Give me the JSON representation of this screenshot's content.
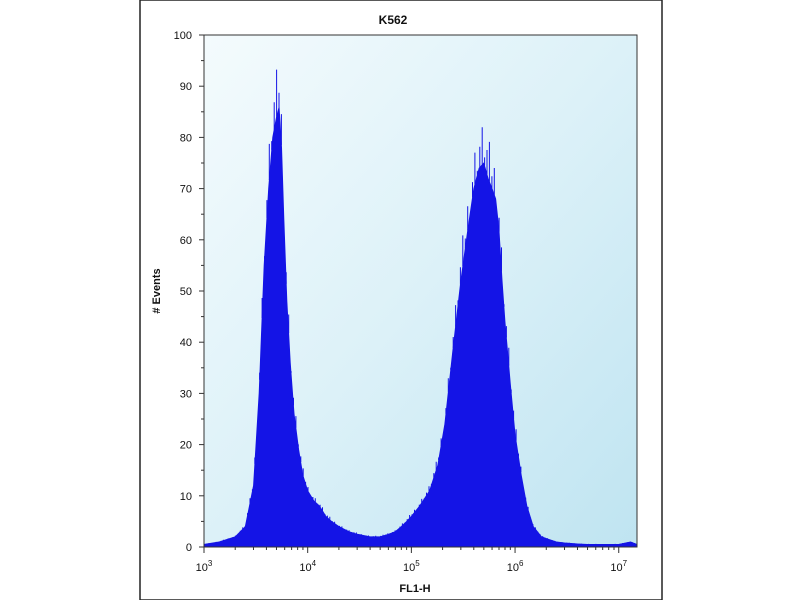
{
  "chart_data": {
    "type": "area",
    "title": "K562",
    "xlabel": "FL1-H",
    "ylabel": "# Events",
    "x_scale": "log",
    "x_range": [
      1000,
      15000000
    ],
    "xticks": [
      {
        "value": 1000,
        "base": "10",
        "exp": "3"
      },
      {
        "value": 10000,
        "base": "10",
        "exp": "4"
      },
      {
        "value": 100000,
        "base": "10",
        "exp": "5"
      },
      {
        "value": 1000000,
        "base": "10",
        "exp": "6"
      },
      {
        "value": 10000000,
        "base": "10",
        "exp": "7"
      }
    ],
    "ylim": [
      0,
      100
    ],
    "yticks": [
      "0",
      "10",
      "20",
      "30",
      "40",
      "50",
      "60",
      "70",
      "80",
      "90",
      "100"
    ],
    "series": [
      {
        "color": "#1414e6",
        "x": [
          1000,
          1400,
          2000,
          2500,
          3000,
          3400,
          3800,
          4200,
          4600,
          5000,
          5300,
          5600,
          5900,
          6300,
          6800,
          7400,
          8200,
          9000,
          10000,
          11500,
          13000,
          15000,
          17000,
          20000,
          25000,
          30000,
          40000,
          50000,
          60000,
          70000,
          80000,
          90000,
          100000,
          120000,
          150000,
          180000,
          210000,
          250000,
          300000,
          350000,
          400000,
          450000,
          500000,
          550000,
          600000,
          650000,
          700000,
          750000,
          800000,
          900000,
          1000000,
          1150000,
          1300000,
          1500000,
          1800000,
          2100000,
          2500000,
          3000000,
          4000000,
          5000000,
          7000000,
          10000000,
          13000000,
          15000000
        ],
        "y": [
          0.5,
          1,
          2,
          4,
          12,
          30,
          55,
          70,
          80,
          84,
          86,
          78,
          64,
          48,
          36,
          26,
          19,
          14,
          11,
          9,
          8,
          6,
          5,
          4,
          3,
          2.5,
          2,
          2,
          2.5,
          3,
          4,
          5,
          6,
          8,
          11,
          16,
          24,
          38,
          52,
          62,
          70,
          74,
          75,
          72,
          70,
          68,
          62,
          52,
          44,
          32,
          22,
          14,
          8,
          4,
          2,
          1.5,
          1,
          0.8,
          0.6,
          0.5,
          0.5,
          0.5,
          1,
          0.5
        ]
      }
    ]
  }
}
